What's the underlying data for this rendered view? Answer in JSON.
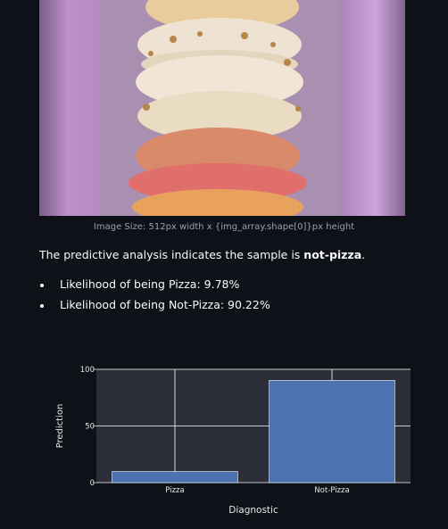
{
  "image": {
    "caption": "Image Size: 512px width x {img_array.shape[0]}px height"
  },
  "result": {
    "prefix": "The predictive analysis indicates the sample is ",
    "label": "not-pizza",
    "suffix": "."
  },
  "likelihoods": [
    {
      "text": "Likelihood of being Pizza: 9.78%"
    },
    {
      "text": "Likelihood of being Not-Pizza: 90.22%"
    }
  ],
  "chart_data": {
    "type": "bar",
    "categories": [
      "Pizza",
      "Not-Pizza"
    ],
    "values": [
      9.78,
      90.22
    ],
    "xlabel": "Diagnostic",
    "ylabel": "Prediction",
    "ylim": [
      0,
      100
    ],
    "yticks": [
      0,
      50,
      100
    ],
    "grid": true,
    "bar_color": "#4c72b0",
    "plot_bg": "#2b2e38"
  }
}
